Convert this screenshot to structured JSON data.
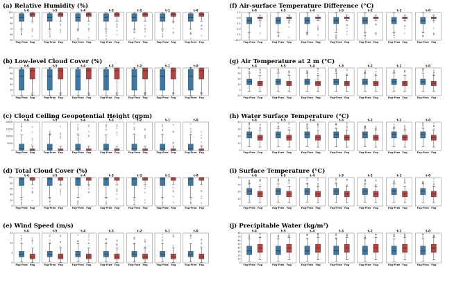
{
  "colors": {
    "fog_free": "#3a78a8",
    "fog": "#b9433c"
  },
  "chart_data": [
    {
      "id": "a",
      "type": "box",
      "title": "(a) Relative Humidity (%)",
      "times": [
        "t-6",
        "t-5",
        "t-4",
        "t-3",
        "t-2",
        "t-1",
        "t-0"
      ],
      "categories": [
        "Fog-Free",
        "Fog"
      ],
      "ylim": [
        50,
        100
      ],
      "yticks": [
        "100",
        "90",
        "80",
        "70",
        "60",
        "50"
      ],
      "series": [
        {
          "name": "Fog-Free",
          "q1": 84,
          "median": 91,
          "q3": 98,
          "whisker_low": 70,
          "whisker_high": 100
        },
        {
          "name": "Fog",
          "q1": 93,
          "median": 97,
          "q3": 99,
          "whisker_low": 84,
          "whisker_high": 100
        }
      ]
    },
    {
      "id": "b",
      "type": "box",
      "title": "(b) Low-level Cloud Cover (%)",
      "times": [
        "t-6",
        "t-5",
        "t-4",
        "t-3",
        "t-2",
        "t-1",
        "t-0"
      ],
      "categories": [
        "Fog-Free",
        "Fog"
      ],
      "ylim": [
        0,
        100
      ],
      "yticks": [
        "100",
        "80",
        "60",
        "40",
        "20",
        "0"
      ],
      "series": [
        {
          "name": "Fog-Free",
          "q1": 20,
          "median": 70,
          "q3": 95,
          "whisker_low": 0,
          "whisker_high": 100
        },
        {
          "name": "Fog",
          "q1": 60,
          "median": 90,
          "q3": 100,
          "whisker_low": 10,
          "whisker_high": 100
        }
      ]
    },
    {
      "id": "c",
      "type": "box",
      "title": "(c) Cloud Ceiling Geopotential Height (gpm)",
      "times": [
        "t-6",
        "t-5",
        "t-4",
        "t-3",
        "t-2",
        "t-1",
        "t-0"
      ],
      "categories": [
        "Fog-Free",
        "Fog"
      ],
      "ylim": [
        0,
        20000
      ],
      "yticks": [
        "20000",
        "15000",
        "10000",
        "5000",
        "0"
      ],
      "series": [
        {
          "name": "Fog-Free",
          "q1": 300,
          "median": 1200,
          "q3": 4500,
          "whisker_low": 0,
          "whisker_high": 11000
        },
        {
          "name": "Fog",
          "q1": 100,
          "median": 300,
          "q3": 1200,
          "whisker_low": 0,
          "whisker_high": 3000
        }
      ]
    },
    {
      "id": "d",
      "type": "box",
      "title": "(d) Total Cloud Cover (%)",
      "times": [
        "t-6",
        "t-5",
        "t-4",
        "t-3",
        "t-2",
        "t-1",
        "t-0"
      ],
      "categories": [
        "Fog-Free",
        "Fog"
      ],
      "ylim": [
        0,
        100
      ],
      "yticks": [
        "100",
        "80",
        "60",
        "40",
        "20",
        "0"
      ],
      "series": [
        {
          "name": "Fog-Free",
          "q1": 72,
          "median": 95,
          "q3": 100,
          "whisker_low": 30,
          "whisker_high": 100
        },
        {
          "name": "Fog",
          "q1": 90,
          "median": 99,
          "q3": 100,
          "whisker_low": 75,
          "whisker_high": 100
        }
      ]
    },
    {
      "id": "e",
      "type": "box",
      "title": "(e) Wind Speed (m/s)",
      "times": [
        "t-6",
        "t-5",
        "t-4",
        "t-3",
        "t-2",
        "t-1",
        "t-0"
      ],
      "categories": [
        "Fog-Free",
        "Fog"
      ],
      "ylim": [
        0,
        15
      ],
      "yticks": [
        "15",
        "10",
        "5",
        "0"
      ],
      "series": [
        {
          "name": "Fog-Free",
          "q1": 3,
          "median": 4.2,
          "q3": 5.8,
          "whisker_low": 0.5,
          "whisker_high": 9.5
        },
        {
          "name": "Fog",
          "q1": 2,
          "median": 3,
          "q3": 4.5,
          "whisker_low": 0.2,
          "whisker_high": 7.5
        }
      ]
    },
    {
      "id": "f",
      "type": "box",
      "title": "(f) Air-surface Temperature Difference (°C)",
      "times": [
        "t-6",
        "t-5",
        "t-4",
        "t-3",
        "t-2",
        "t-1",
        "t-0"
      ],
      "categories": [
        "Fog-Free",
        "Fog"
      ],
      "ylim": [
        -10,
        2.5
      ],
      "yticks": [
        "2.5",
        "0.0",
        "-2.5",
        "-5.0",
        "-7.5",
        "-10.0"
      ],
      "series": [
        {
          "name": "Fog-Free",
          "q1": -2.6,
          "median": -1.2,
          "q3": 0.3,
          "whisker_low": -6.5,
          "whisker_high": 2.5
        },
        {
          "name": "Fog",
          "q1": -0.3,
          "median": 0.1,
          "q3": 0.4,
          "whisker_low": -1.2,
          "whisker_high": 1.3
        }
      ]
    },
    {
      "id": "g",
      "type": "box",
      "title": "(g) Air Temperature at 2 m (°C)",
      "times": [
        "t-6",
        "t-5",
        "t-4",
        "t-3",
        "t-2",
        "t-1",
        "t-0"
      ],
      "categories": [
        "Fog-Free",
        "Fog"
      ],
      "ylim": [
        -10,
        40
      ],
      "yticks": [
        "40",
        "30",
        "20",
        "10",
        "0",
        "-10"
      ],
      "series": [
        {
          "name": "Fog-Free",
          "q1": 10,
          "median": 15,
          "q3": 20,
          "whisker_low": -2,
          "whisker_high": 31
        },
        {
          "name": "Fog",
          "q1": 8,
          "median": 12.5,
          "q3": 16,
          "whisker_low": -2,
          "whisker_high": 27
        }
      ]
    },
    {
      "id": "h",
      "type": "box",
      "title": "(h) Water Surface Temperature (°C)",
      "times": [
        "t-6",
        "t-5",
        "t-4",
        "t-3",
        "t-2",
        "t-1",
        "t-0"
      ],
      "categories": [
        "Fog-Free",
        "Fog"
      ],
      "ylim": [
        -5,
        45
      ],
      "yticks": [
        "40",
        "30",
        "20",
        "10",
        "0"
      ],
      "series": [
        {
          "name": "Fog-Free",
          "q1": 17,
          "median": 24,
          "q3": 28,
          "whisker_low": 2,
          "whisker_high": 34
        },
        {
          "name": "Fog",
          "q1": 13,
          "median": 18,
          "q3": 22,
          "whisker_low": 1,
          "whisker_high": 31
        }
      ]
    },
    {
      "id": "i",
      "type": "box",
      "title": "(i) Surface Temperature (°C)",
      "times": [
        "t-6",
        "t-5",
        "t-4",
        "t-3",
        "t-2",
        "t-1",
        "t-0"
      ],
      "categories": [
        "Fog-Free",
        "Fog"
      ],
      "ylim": [
        -5,
        45
      ],
      "yticks": [
        "40",
        "30",
        "20",
        "10",
        "0"
      ],
      "series": [
        {
          "name": "Fog-Free",
          "q1": 15,
          "median": 21,
          "q3": 26,
          "whisker_low": 2,
          "whisker_high": 34
        },
        {
          "name": "Fog",
          "q1": 11,
          "median": 16,
          "q3": 21,
          "whisker_low": 1,
          "whisker_high": 30
        }
      ]
    },
    {
      "id": "j",
      "type": "box",
      "title": "(j) Precipitable Water (kg/m²)",
      "times": [
        "t-6",
        "t-5",
        "t-4",
        "t-3",
        "t-2",
        "t-1",
        "t-0"
      ],
      "categories": [
        "Fog-Free",
        "Fog"
      ],
      "ylim": [
        0,
        80
      ],
      "yticks": [
        "80",
        "70",
        "60",
        "50",
        "40",
        "30",
        "20",
        "10",
        "0"
      ],
      "series": [
        {
          "name": "Fog-Free",
          "q1": 22,
          "median": 32,
          "q3": 45,
          "whisker_low": 5,
          "whisker_high": 65
        },
        {
          "name": "Fog",
          "q1": 28,
          "median": 40,
          "q3": 50,
          "whisker_low": 8,
          "whisker_high": 68
        }
      ]
    }
  ]
}
